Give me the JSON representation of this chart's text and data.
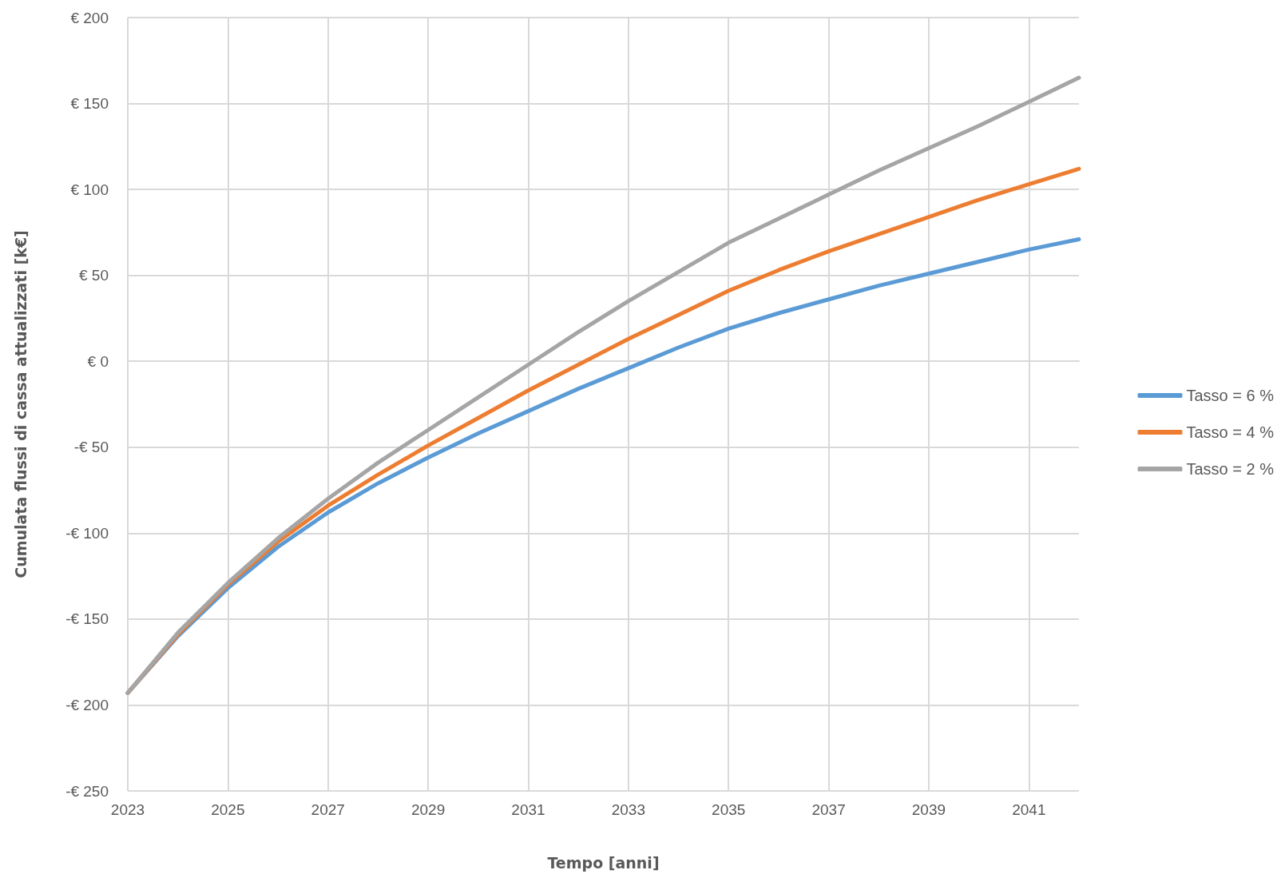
{
  "chart_data": {
    "type": "line",
    "xlabel": "Tempo [anni]",
    "ylabel": "Cumulata flussi di cassa attualizzati [k€]",
    "x": [
      2023,
      2024,
      2025,
      2026,
      2027,
      2028,
      2029,
      2030,
      2031,
      2032,
      2033,
      2034,
      2035,
      2036,
      2037,
      2038,
      2039,
      2040,
      2041,
      2042
    ],
    "series": [
      {
        "name": "Tasso = 6 %",
        "color": "#5b9bd5",
        "values": [
          -193,
          -160,
          -132,
          -108,
          -88,
          -71,
          -56,
          -42,
          -29,
          -16,
          -4,
          8,
          19,
          28,
          36,
          44,
          51,
          58,
          65,
          71
        ]
      },
      {
        "name": "Tasso = 4 %",
        "color": "#ed7d31",
        "values": [
          -193,
          -159,
          -130,
          -105,
          -84,
          -66,
          -49,
          -33,
          -17,
          -2,
          13,
          27,
          41,
          53,
          64,
          74,
          84,
          94,
          103,
          112
        ]
      },
      {
        "name": "Tasso = 2 %",
        "color": "#a5a5a5",
        "values": [
          -193,
          -158,
          -129,
          -103,
          -80,
          -59,
          -40,
          -21,
          -2,
          17,
          35,
          52,
          69,
          83,
          97,
          111,
          124,
          137,
          151,
          165
        ]
      }
    ],
    "xlim": [
      2023,
      2042
    ],
    "xticks": [
      2023,
      2025,
      2027,
      2029,
      2031,
      2033,
      2035,
      2037,
      2039,
      2041
    ],
    "ylim": [
      -250,
      200
    ],
    "yticks": [
      {
        "value": -250,
        "label": "-€ 250"
      },
      {
        "value": -200,
        "label": "-€ 200"
      },
      {
        "value": -150,
        "label": "-€ 150"
      },
      {
        "value": -100,
        "label": "-€ 100"
      },
      {
        "value": -50,
        "label": "-€ 50"
      },
      {
        "value": 0,
        "label": "€ 0"
      },
      {
        "value": 50,
        "label": "€ 50"
      },
      {
        "value": 100,
        "label": "€ 100"
      },
      {
        "value": 150,
        "label": "€ 150"
      },
      {
        "value": 200,
        "label": "€ 200"
      }
    ],
    "grid": true,
    "legend": "right",
    "marker": "none",
    "line_style": "solid"
  }
}
